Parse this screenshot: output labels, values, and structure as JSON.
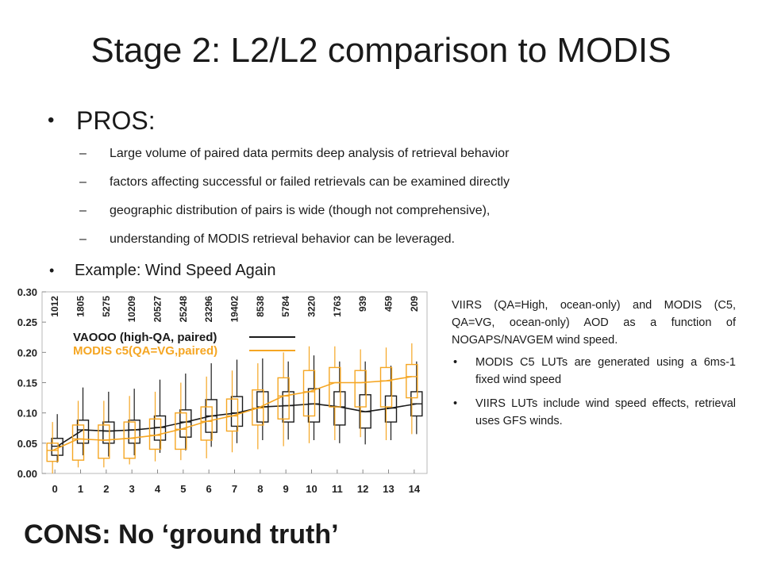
{
  "slide": {
    "title": "Stage 2: L2/L2 comparison to MODIS",
    "pros_label": "PROS:",
    "pros_items": [
      "Large volume of paired data permits deep analysis of retrieval behavior",
      "factors affecting successful or failed retrievals can be examined directly",
      "geographic distribution of pairs is wide (though not comprehensive),",
      "understanding of MODIS retrieval behavior can be leveraged."
    ],
    "example_label": "Example: Wind Speed Again",
    "bullet_char": "•",
    "dash_char": "–",
    "cons_label": "CONS: No ‘ground truth’",
    "note": {
      "paragraph": "VIIRS (QA=High, ocean-only) and MODIS (C5, QA=VG, ocean-only) AOD as a function of NOGAPS/NAVGEM wind speed.",
      "bullets": [
        "MODIS C5 LUTs are generated using a 6ms-1 fixed wind speed",
        "VIIRS LUTs include wind speed effects, retrieval uses GFS winds."
      ]
    }
  },
  "chart_data": {
    "type": "box",
    "x": [
      0,
      1,
      2,
      3,
      4,
      5,
      6,
      7,
      8,
      9,
      10,
      11,
      12,
      13,
      14
    ],
    "counts": [
      "1012",
      "1805",
      "5275",
      "10209",
      "20527",
      "25248",
      "23296",
      "19402",
      "8538",
      "5784",
      "3220",
      "1763",
      "939",
      "459",
      "209"
    ],
    "yticks": [
      "0.00",
      "0.05",
      "0.10",
      "0.15",
      "0.20",
      "0.25",
      "0.30"
    ],
    "xticks": [
      "0",
      "1",
      "2",
      "3",
      "4",
      "5",
      "6",
      "7",
      "8",
      "9",
      "10",
      "11",
      "12",
      "13",
      "14"
    ],
    "ylim": [
      0.0,
      0.3
    ],
    "xlim": [
      -0.5,
      14.5
    ],
    "series": [
      {
        "name": "VAOOO (high-QA, paired)",
        "color": "#1a1a1a",
        "median": [
          0.045,
          0.072,
          0.07,
          0.072,
          0.076,
          0.085,
          0.095,
          0.1,
          0.11,
          0.112,
          0.115,
          0.11,
          0.102,
          0.108,
          0.115
        ],
        "q1": [
          0.03,
          0.05,
          0.05,
          0.05,
          0.055,
          0.06,
          0.068,
          0.078,
          0.085,
          0.085,
          0.085,
          0.08,
          0.075,
          0.085,
          0.095
        ],
        "q3": [
          0.058,
          0.088,
          0.085,
          0.088,
          0.095,
          0.105,
          0.122,
          0.127,
          0.135,
          0.135,
          0.14,
          0.135,
          0.13,
          0.128,
          0.135
        ],
        "low": [
          0.018,
          0.03,
          0.028,
          0.03,
          0.034,
          0.038,
          0.044,
          0.05,
          0.055,
          0.056,
          0.055,
          0.05,
          0.048,
          0.055,
          0.065
        ],
        "high": [
          0.098,
          0.142,
          0.135,
          0.14,
          0.155,
          0.165,
          0.182,
          0.188,
          0.19,
          0.185,
          0.195,
          0.185,
          0.185,
          0.178,
          0.185
        ]
      },
      {
        "name": "MODIS c5(QA=VG,paired)",
        "color": "#f5a623",
        "median": [
          0.038,
          0.057,
          0.055,
          0.058,
          0.063,
          0.073,
          0.086,
          0.095,
          0.108,
          0.128,
          0.135,
          0.15,
          0.15,
          0.153,
          0.16
        ],
        "q1": [
          0.02,
          0.022,
          0.025,
          0.025,
          0.04,
          0.04,
          0.055,
          0.07,
          0.08,
          0.09,
          0.095,
          0.11,
          0.11,
          0.11,
          0.125
        ],
        "q3": [
          0.05,
          0.08,
          0.08,
          0.085,
          0.09,
          0.1,
          0.11,
          0.123,
          0.138,
          0.158,
          0.17,
          0.175,
          0.17,
          0.175,
          0.18
        ],
        "low": [
          0.0,
          0.01,
          0.01,
          0.015,
          0.02,
          0.022,
          0.025,
          0.035,
          0.04,
          0.045,
          0.05,
          0.055,
          0.06,
          0.055,
          0.065
        ],
        "high": [
          0.085,
          0.12,
          0.12,
          0.128,
          0.135,
          0.15,
          0.16,
          0.17,
          0.182,
          0.2,
          0.21,
          0.21,
          0.205,
          0.208,
          0.215
        ]
      }
    ]
  }
}
